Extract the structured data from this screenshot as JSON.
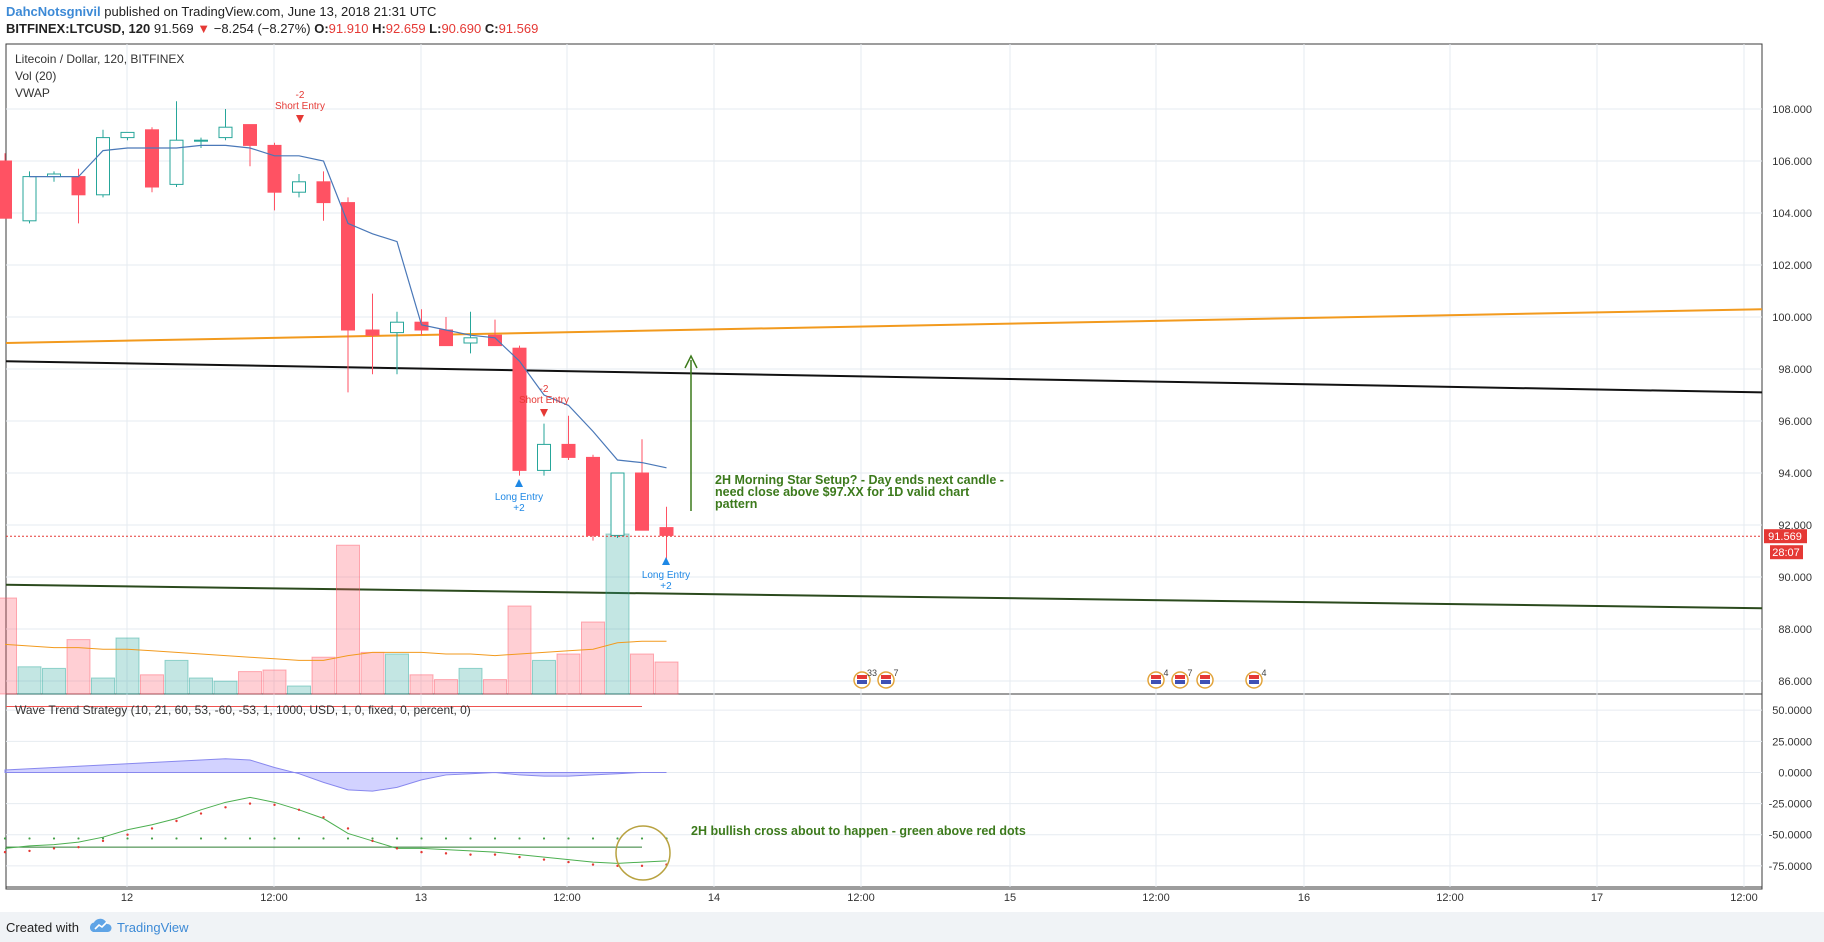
{
  "header": {
    "author": "DahcNotsgnivil",
    "published": "published on TradingView.com, June 13, 2018 21:31 UTC",
    "symbol": "BITFINEX:LTCUSD, 120",
    "last": "91.569",
    "change": "−8.254 (−8.27%)",
    "o_label": "O:",
    "o": "91.910",
    "h_label": "H:",
    "h": "92.659",
    "l_label": "L:",
    "l": "90.690",
    "c_label": "C:",
    "c": "91.569"
  },
  "legend": {
    "title": "Litecoin / Dollar, 120, BITFINEX",
    "vol": "Vol (20)",
    "vwap": "VWAP",
    "indicator": "Wave Trend Strategy (10, 21, 60, 53, -60, -53, 1, 1000, USD, 1, 0, fixed, 0, percent, 0)"
  },
  "price_axis_labels": [
    "108.000",
    "106.000",
    "104.000",
    "102.000",
    "100.000",
    "98.000",
    "96.000",
    "94.000",
    "92.000",
    "90.000",
    "88.000",
    "86.000"
  ],
  "osc_axis_labels": [
    "50.0000",
    "25.0000",
    "0.0000",
    "-25.0000",
    "-50.0000",
    "-75.0000"
  ],
  "time_axis_labels": [
    "12",
    "12:00",
    "13",
    "12:00",
    "14",
    "12:00",
    "15",
    "12:00",
    "16",
    "12:00",
    "17",
    "12:00"
  ],
  "last_price_tag": "91.569",
  "countdown_tag": "28:07",
  "annotations": {
    "morning_star": [
      "2H Morning Star Setup? - Day ends next candle -",
      "need close above $97.XX for 1D valid chart",
      "pattern"
    ],
    "bullish_cross": "2H bullish cross about to happen - green above red dots"
  },
  "signals": [
    {
      "id": "short1",
      "line1": "-2",
      "line2": "Short Entry",
      "color": "#e53935"
    },
    {
      "id": "short2",
      "line1": "-2",
      "line2": "Short Entry",
      "color": "#e53935"
    },
    {
      "id": "long1",
      "line1": "Long Entry",
      "line2": "+2",
      "color": "#1e88e5"
    },
    {
      "id": "long2",
      "line1": "Long Entry",
      "line2": "+2",
      "color": "#1e88e5"
    }
  ],
  "events": [
    {
      "badge": "33"
    },
    {
      "badge": "7"
    },
    {
      "badge": "4"
    },
    {
      "badge": "7"
    },
    {
      "badge": ""
    },
    {
      "badge": "4"
    }
  ],
  "footer": {
    "created_with": "Created with",
    "brand": "TradingView"
  },
  "colors": {
    "up": "#26a69a",
    "down": "#ff5263",
    "vwap": "#4a78b8",
    "orange_line": "#f29a1e",
    "black_line": "#111111",
    "green_line": "#2b4a1d",
    "annotation": "#3c7a1c",
    "osc_fill": "#b4b4ff"
  },
  "chart_data": {
    "type": "candlestick",
    "candles": [
      {
        "o": 106.0,
        "h": 106.3,
        "l": 103.8,
        "c": 103.8
      },
      {
        "o": 103.7,
        "h": 105.6,
        "l": 103.6,
        "c": 105.4
      },
      {
        "o": 105.4,
        "h": 105.6,
        "l": 105.2,
        "c": 105.5
      },
      {
        "o": 105.4,
        "h": 105.7,
        "l": 103.6,
        "c": 104.7
      },
      {
        "o": 104.7,
        "h": 107.2,
        "l": 104.6,
        "c": 106.9
      },
      {
        "o": 106.9,
        "h": 107.1,
        "l": 106.8,
        "c": 107.1
      },
      {
        "o": 107.2,
        "h": 107.3,
        "l": 104.8,
        "c": 105.0
      },
      {
        "o": 105.1,
        "h": 108.3,
        "l": 105.0,
        "c": 106.8
      },
      {
        "o": 106.8,
        "h": 106.9,
        "l": 106.5,
        "c": 106.8
      },
      {
        "o": 106.9,
        "h": 108.0,
        "l": 106.8,
        "c": 107.3
      },
      {
        "o": 107.4,
        "h": 107.4,
        "l": 105.8,
        "c": 106.6
      },
      {
        "o": 106.6,
        "h": 106.7,
        "l": 104.1,
        "c": 104.8
      },
      {
        "o": 104.8,
        "h": 105.5,
        "l": 104.6,
        "c": 105.2
      },
      {
        "o": 105.2,
        "h": 105.6,
        "l": 103.7,
        "c": 104.4
      },
      {
        "o": 104.4,
        "h": 104.6,
        "l": 97.1,
        "c": 99.5
      },
      {
        "o": 99.5,
        "h": 100.9,
        "l": 97.8,
        "c": 99.3
      },
      {
        "o": 99.4,
        "h": 100.2,
        "l": 97.8,
        "c": 99.8
      },
      {
        "o": 99.8,
        "h": 100.3,
        "l": 99.3,
        "c": 99.5
      },
      {
        "o": 99.5,
        "h": 100.0,
        "l": 98.9,
        "c": 98.9
      },
      {
        "o": 99.0,
        "h": 100.2,
        "l": 98.6,
        "c": 99.2
      },
      {
        "o": 99.3,
        "h": 99.9,
        "l": 98.9,
        "c": 98.9
      },
      {
        "o": 98.8,
        "h": 98.9,
        "l": 93.9,
        "c": 94.1
      },
      {
        "o": 94.1,
        "h": 95.9,
        "l": 93.9,
        "c": 95.1
      },
      {
        "o": 95.1,
        "h": 96.2,
        "l": 94.5,
        "c": 94.6
      },
      {
        "o": 94.6,
        "h": 94.7,
        "l": 91.4,
        "c": 91.6
      },
      {
        "o": 91.6,
        "h": 94.0,
        "l": 91.5,
        "c": 94.0
      },
      {
        "o": 94.0,
        "h": 95.3,
        "l": 91.8,
        "c": 91.8
      },
      {
        "o": 91.9,
        "h": 92.7,
        "l": 90.7,
        "c": 91.6
      }
    ],
    "volume": [
      60,
      17,
      16,
      34,
      10,
      35,
      12,
      21,
      10,
      8,
      14,
      15,
      5,
      23,
      93,
      26,
      25,
      12,
      9,
      16,
      9,
      55,
      21,
      25,
      45,
      100,
      25,
      20
    ],
    "volume_ma": [
      31,
      30,
      29,
      29,
      28,
      28,
      27,
      26,
      25,
      24,
      23,
      22,
      21,
      21,
      24,
      26,
      26,
      26,
      25,
      25,
      24,
      25,
      26,
      27,
      28,
      32,
      33,
      33
    ],
    "vwap": [
      null,
      105.4,
      105.4,
      105.4,
      106.4,
      106.5,
      106.5,
      106.5,
      106.6,
      106.6,
      106.5,
      106.2,
      106.2,
      106.0,
      103.6,
      103.2,
      102.9,
      99.7,
      99.5,
      99.3,
      99.2,
      98.3,
      97.0,
      96.6,
      95.6,
      94.5,
      94.4,
      94.2
    ],
    "wt1": [
      -61,
      -59,
      -58,
      -56,
      -52,
      -46,
      -42,
      -37,
      -30,
      -24,
      -20,
      -24,
      -30,
      -37,
      -49,
      -55,
      -61,
      -61,
      -62,
      -63,
      -64,
      -66,
      -68,
      -70,
      -72,
      -73,
      -72,
      -71
    ],
    "wt2": [
      -61,
      -60,
      -58,
      -57,
      -52,
      -47,
      -42,
      -36,
      -30,
      -25,
      -22,
      -23,
      -27,
      -33,
      -42,
      -52,
      -58,
      -61,
      -62,
      -63,
      -63,
      -65,
      -67,
      -69,
      -71,
      -72,
      -72,
      -71
    ],
    "wave_hist": [
      2,
      3,
      4,
      5,
      6,
      7,
      8,
      9,
      10,
      11,
      10,
      4,
      -1,
      -8,
      -14,
      -15,
      -12,
      -6,
      -2,
      -1,
      0,
      -2,
      -3,
      -3,
      -2,
      -1,
      0,
      0
    ],
    "price_range": [
      85.5,
      110.5
    ],
    "osc_range": [
      -92,
      63
    ],
    "orange_trend": {
      "x_start": 0,
      "y_start": 99.0,
      "x_end": 1,
      "y_end": 100.3
    },
    "black_trend": {
      "x_start": 0,
      "y_start": 98.3,
      "x_end": 1,
      "y_end": 97.1
    },
    "green_trend": {
      "x_start": 0,
      "y_start": 89.7,
      "x_end": 1,
      "y_end": 88.8
    }
  }
}
